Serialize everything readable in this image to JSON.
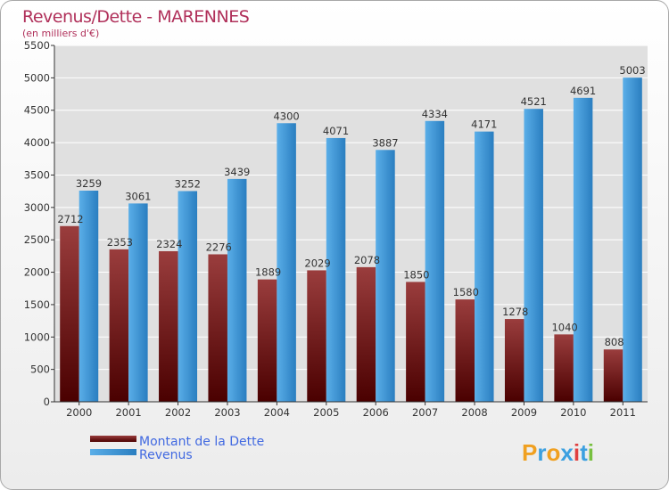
{
  "chart_data": {
    "type": "bar",
    "title": "Revenus/Dette - MARENNES",
    "subtitle": "(en milliers d'€)",
    "categories": [
      "2000",
      "2001",
      "2002",
      "2003",
      "2004",
      "2005",
      "2006",
      "2007",
      "2008",
      "2009",
      "2010",
      "2011"
    ],
    "series": [
      {
        "name": "Montant de la Dette",
        "color_top": "#9a3d3d",
        "color_bottom": "#4a0000",
        "values": [
          2712,
          2353,
          2324,
          2276,
          1889,
          2029,
          2078,
          1850,
          1580,
          1278,
          1040,
          808
        ]
      },
      {
        "name": "Revenus",
        "color_top": "#5aaee8",
        "color_bottom": "#2a7ec0",
        "values": [
          3259,
          3061,
          3252,
          3439,
          4300,
          4071,
          3887,
          4334,
          4171,
          4521,
          4691,
          5003
        ]
      }
    ],
    "ylim": [
      0,
      5500
    ],
    "yticks": [
      0,
      500,
      1000,
      1500,
      2000,
      2500,
      3000,
      3500,
      4000,
      4500,
      5000,
      5500
    ],
    "grid": true,
    "legend_position": "bottom-left",
    "plot_background": "#e0e0e0"
  },
  "logo": {
    "text": "Proxiti"
  }
}
